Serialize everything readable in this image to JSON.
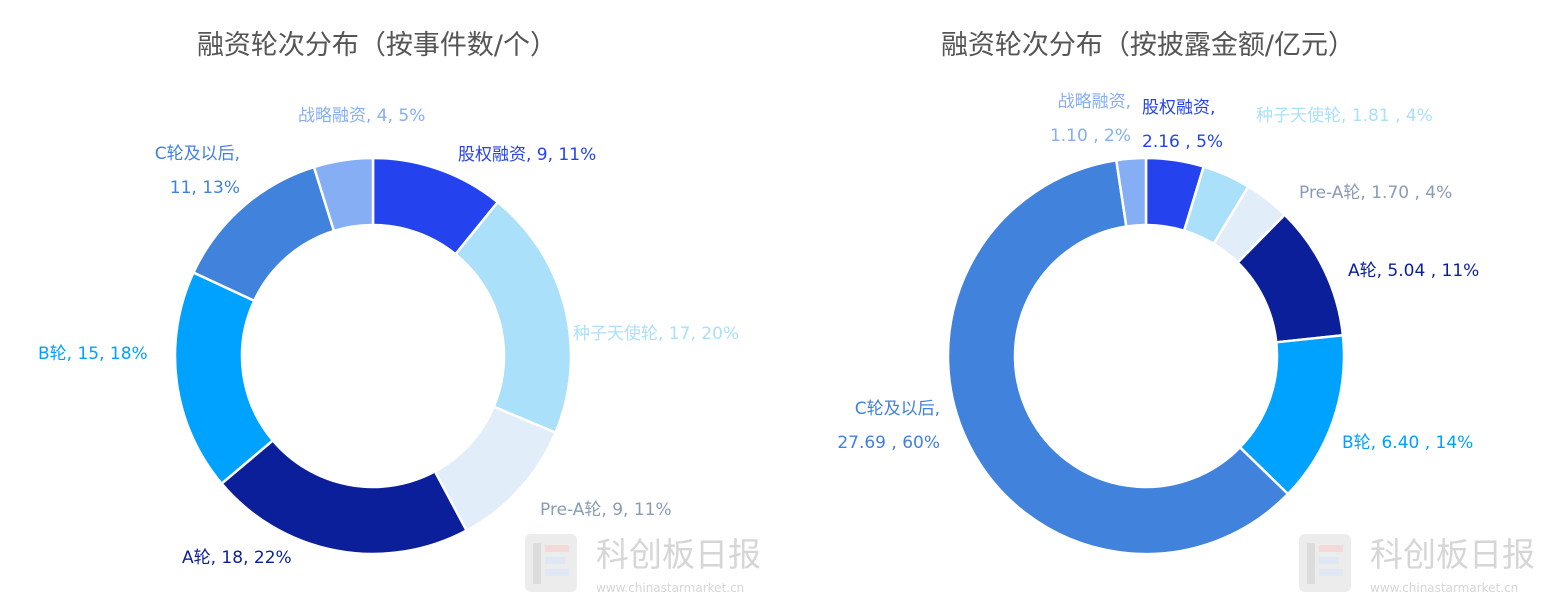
{
  "chart_data": [
    {
      "type": "donut",
      "title": "融资轮次分布（按事件数/个）",
      "slices": [
        {
          "name": "股权融资",
          "value": 9,
          "percent": "11%",
          "label_lines": [
            "股权融资, 9, 11%"
          ],
          "color": "#2443ee"
        },
        {
          "name": "种子天使轮",
          "value": 17,
          "percent": "20%",
          "label_lines": [
            "种子天使轮, 17, 20%"
          ],
          "color": "#abe0fb"
        },
        {
          "name": "Pre-A轮",
          "value": 9,
          "percent": "11%",
          "label_lines": [
            "Pre-A轮, 9, 11%"
          ],
          "color": "#e1edf9"
        },
        {
          "name": "A轮",
          "value": 18,
          "percent": "22%",
          "label_lines": [
            "A轮, 18, 22%"
          ],
          "color": "#0b1f9a"
        },
        {
          "name": "B轮",
          "value": 15,
          "percent": "18%",
          "label_lines": [
            "B轮, 15, 18%"
          ],
          "color": "#00a2ff"
        },
        {
          "name": "C轮及以后",
          "value": 11,
          "percent": "13%",
          "label_lines": [
            "C轮及以后,",
            "11, 13%"
          ],
          "color": "#4182dd"
        },
        {
          "name": "战略融资",
          "value": 4,
          "percent": "5%",
          "label_lines": [
            "战略融资, 4, 5%"
          ],
          "color": "#86aef5"
        }
      ]
    },
    {
      "type": "donut",
      "title": "融资轮次分布（按披露金额/亿元）",
      "slices": [
        {
          "name": "股权融资",
          "value": 2.16,
          "percent": "5%",
          "label_lines": [
            "股权融资,",
            "2.16 , 5%"
          ],
          "color": "#2443ee"
        },
        {
          "name": "种子天使轮",
          "value": 1.81,
          "percent": "4%",
          "label_lines": [
            "种子天使轮, 1.81 , 4%"
          ],
          "color": "#abe0fb"
        },
        {
          "name": "Pre-A轮",
          "value": 1.7,
          "percent": "4%",
          "label_lines": [
            "Pre-A轮, 1.70 , 4%"
          ],
          "color": "#e1edf9"
        },
        {
          "name": "A轮",
          "value": 5.04,
          "percent": "11%",
          "label_lines": [
            "A轮, 5.04 , 11%"
          ],
          "color": "#0b1f9a"
        },
        {
          "name": "B轮",
          "value": 6.4,
          "percent": "14%",
          "label_lines": [
            "B轮, 6.40 , 14%"
          ],
          "color": "#00a2ff"
        },
        {
          "name": "C轮及以后",
          "value": 27.69,
          "percent": "60%",
          "label_lines": [
            "C轮及以后,",
            "27.69 , 60%"
          ],
          "color": "#4182dd"
        },
        {
          "name": "战略融资",
          "value": 1.1,
          "percent": "2%",
          "label_lines": [
            "战略融资,",
            "1.10 , 2%"
          ],
          "color": "#86aef5"
        }
      ]
    }
  ],
  "watermark": {
    "brand": "科创板日报",
    "url": "www.chinastarmarket.cn"
  }
}
